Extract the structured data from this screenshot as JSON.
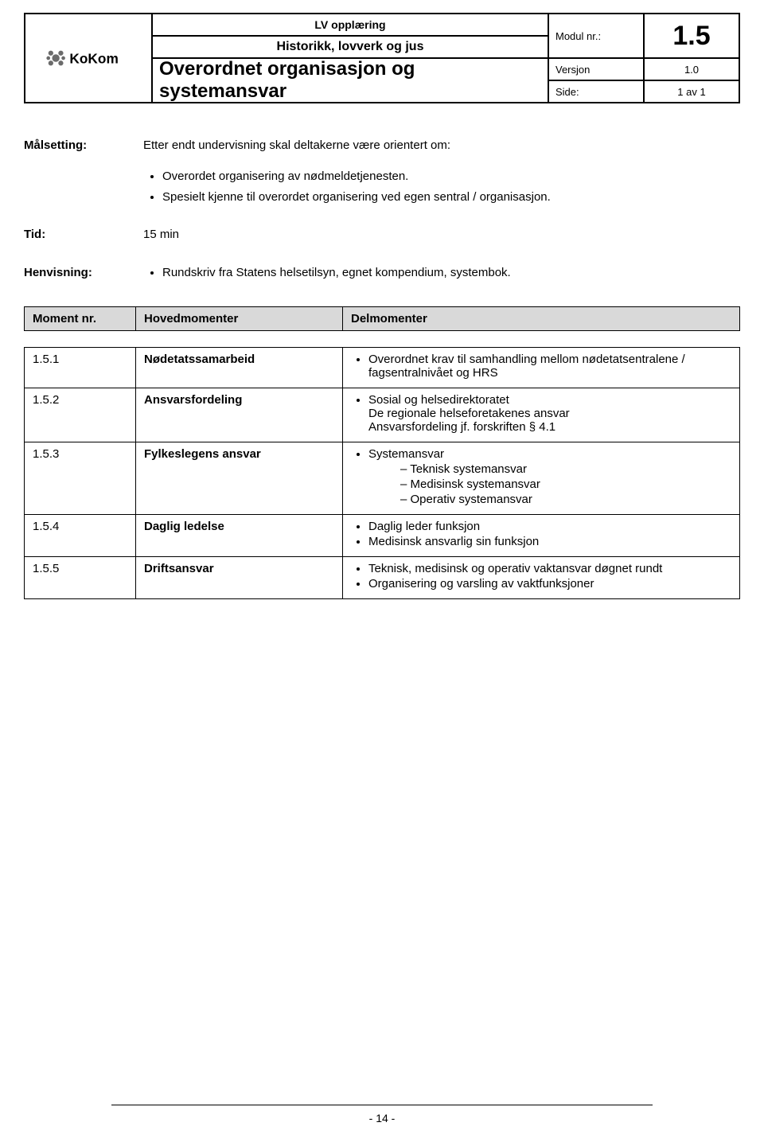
{
  "header": {
    "training": "LV opplæring",
    "subject": "Historikk, lovverk og jus",
    "title": "Overordnet organisasjon og systemansvar",
    "module_label": "Modul nr.:",
    "module_value": "1.5",
    "version_label": "Versjon",
    "version_value": "1.0",
    "page_label": "Side:",
    "page_value": "1 av 1",
    "logo_text": "KoKom"
  },
  "goal": {
    "label": "Målsetting:",
    "intro": "Etter endt undervisning skal deltakerne være orientert om:",
    "bullets": [
      "Overordet organisering av nødmeldetjenesten.",
      "Spesielt kjenne til overordet organisering ved egen sentral / organisasjon."
    ]
  },
  "time": {
    "label": "Tid:",
    "value": "15 min"
  },
  "ref": {
    "label": "Henvisning:",
    "bullets": [
      "Rundskriv fra Statens helsetilsyn, egnet kompendium, systembok."
    ]
  },
  "moment_headers": {
    "nr": "Moment nr.",
    "main": "Hovedmomenter",
    "del": "Delmomenter"
  },
  "rows": [
    {
      "nr": "1.5.1",
      "main": "Nødetatssamarbeid",
      "del": [
        {
          "text": "Overordnet krav til samhandling mellom nødetatsentralene / fagsentralnivået og HRS"
        }
      ]
    },
    {
      "nr": "1.5.2",
      "main": "Ansvarsfordeling",
      "del": [
        {
          "text": "Sosial og helsedirektoratet",
          "sub_text": [
            "De regionale helseforetakenes ansvar",
            "Ansvarsfordeling jf. forskriften § 4.1"
          ]
        }
      ]
    },
    {
      "nr": "1.5.3",
      "main": "Fylkeslegens ansvar",
      "del": [
        {
          "text": "Systemansvar",
          "dash_sub": [
            "Teknisk systemansvar",
            "Medisinsk systemansvar",
            "Operativ systemansvar"
          ]
        }
      ]
    },
    {
      "nr": "1.5.4",
      "main": "Daglig ledelse",
      "del": [
        {
          "text": "Daglig leder funksjon"
        },
        {
          "text": "Medisinsk ansvarlig sin funksjon"
        }
      ]
    },
    {
      "nr": "1.5.5",
      "main": "Driftsansvar",
      "del": [
        {
          "text": "Teknisk, medisinsk og operativ vaktansvar døgnet rundt"
        },
        {
          "text": "Organisering og varsling av vaktfunksjoner"
        }
      ]
    }
  ],
  "footer": {
    "page_number": "- 14 -"
  }
}
